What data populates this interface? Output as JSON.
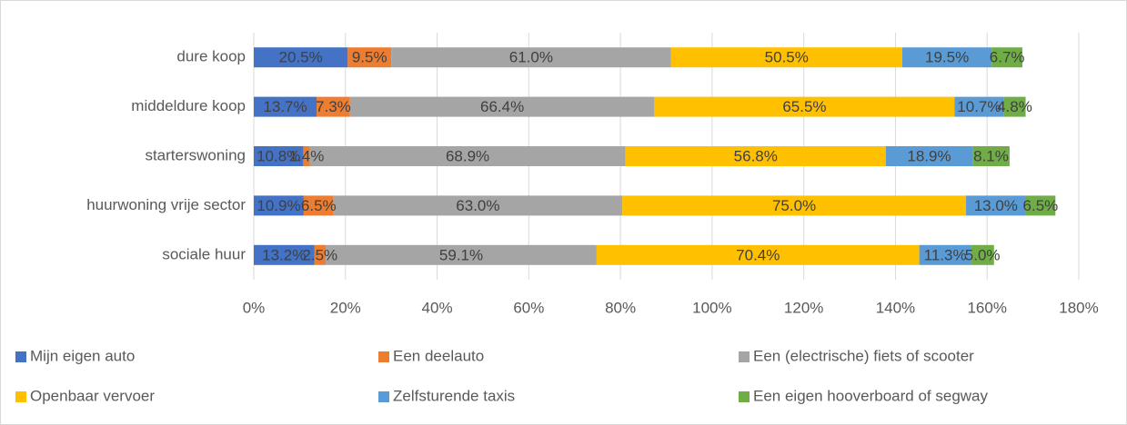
{
  "chart_data": {
    "type": "stacked-bar-horizontal",
    "categories": [
      "dure koop",
      "middeldure koop",
      "starterswoning",
      "huurwoning vrije sector",
      "sociale huur"
    ],
    "series": [
      {
        "name": "Mijn eigen auto",
        "color": "#4472c4",
        "values": [
          20.5,
          13.7,
          10.8,
          10.9,
          13.2
        ],
        "value_labels": [
          "20.5%",
          "13.7%",
          "10.8%",
          "10.9%",
          "13.2%"
        ]
      },
      {
        "name": "Een deelauto",
        "color": "#ed7d31",
        "values": [
          9.5,
          7.3,
          1.4,
          6.5,
          2.5
        ],
        "value_labels": [
          "9.5%",
          "7.3%",
          "1.4%",
          "6.5%",
          "2.5%"
        ]
      },
      {
        "name": "Een (electrische) fiets of scooter",
        "color": "#a5a5a5",
        "values": [
          61.0,
          66.4,
          68.9,
          63.0,
          59.1
        ],
        "value_labels": [
          "61.0%",
          "66.4%",
          "68.9%",
          "63.0%",
          "59.1%"
        ]
      },
      {
        "name": "Openbaar vervoer",
        "color": "#ffc000",
        "values": [
          50.5,
          65.5,
          56.8,
          75.0,
          70.4
        ],
        "value_labels": [
          "50.5%",
          "65.5%",
          "56.8%",
          "75.0%",
          "70.4%"
        ]
      },
      {
        "name": "Zelfsturende taxis",
        "color": "#5b9bd5",
        "values": [
          19.5,
          10.7,
          18.9,
          13.0,
          11.3
        ],
        "value_labels": [
          "19.5%",
          "10.7%",
          "18.9%",
          "13.0%",
          "11.3%"
        ]
      },
      {
        "name": "Een eigen hooverboard of segway",
        "color": "#70ad47",
        "values": [
          6.7,
          4.8,
          8.1,
          6.5,
          5.0
        ],
        "value_labels": [
          "6.7%",
          "4.8%",
          "8.1%",
          "6.5%",
          "5.0%"
        ]
      }
    ],
    "xlim": [
      0,
      180
    ],
    "xticks": [
      {
        "value": 0,
        "label": "0%"
      },
      {
        "value": 20,
        "label": "20%"
      },
      {
        "value": 40,
        "label": "40%"
      },
      {
        "value": 60,
        "label": "60%"
      },
      {
        "value": 80,
        "label": "80%"
      },
      {
        "value": 100,
        "label": "100%"
      },
      {
        "value": 120,
        "label": "120%"
      },
      {
        "value": 140,
        "label": "140%"
      },
      {
        "value": 160,
        "label": "160%"
      },
      {
        "value": 180,
        "label": "180%"
      }
    ],
    "grid": true,
    "legend": "bottom"
  }
}
